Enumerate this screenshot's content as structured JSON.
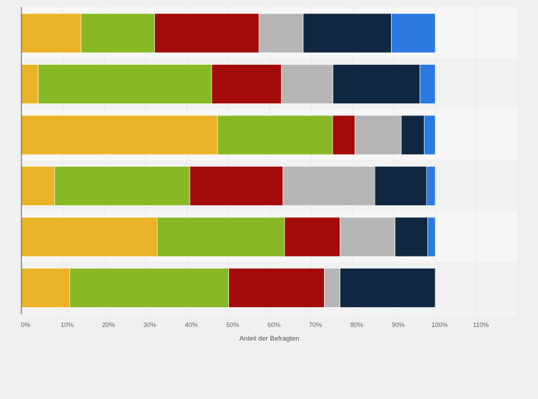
{
  "chart_data": {
    "type": "bar",
    "orientation": "horizontal",
    "stacked": true,
    "title": "",
    "xlabel": "Anteil der Befragten",
    "ylabel": "",
    "xlim": [
      0,
      120
    ],
    "x_ticks": [
      "0%",
      "10%",
      "20%",
      "30%",
      "40%",
      "50%",
      "60%",
      "70%",
      "80%",
      "90%",
      "100%",
      "110%"
    ],
    "grid": true,
    "legend": "none",
    "series": [
      {
        "color": "#eab327",
        "values": [
          14.4,
          4.1,
          47.4,
          8.0,
          32.8,
          11.7
        ]
      },
      {
        "color": "#88b925",
        "values": [
          17.8,
          41.9,
          27.8,
          32.7,
          30.8,
          38.4
        ]
      },
      {
        "color": "#a30a0a",
        "values": [
          25.2,
          16.8,
          5.4,
          22.5,
          13.4,
          23.1
        ]
      },
      {
        "color": "#b6b6b6",
        "values": [
          10.7,
          12.5,
          11.2,
          22.2,
          13.3,
          3.8
        ]
      },
      {
        "color": "#0f2740",
        "values": [
          21.3,
          21.0,
          5.5,
          12.5,
          7.9,
          23.0
        ]
      },
      {
        "color": "#2a7ae2",
        "values": [
          10.6,
          3.7,
          2.7,
          2.1,
          1.8,
          0.0
        ]
      }
    ]
  }
}
